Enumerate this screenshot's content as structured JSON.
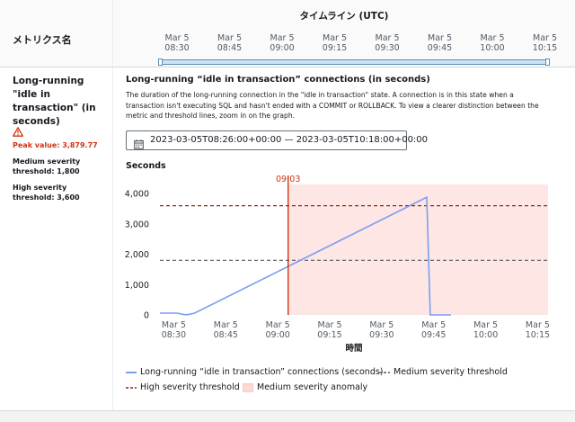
{
  "header": {
    "metrics_label": "メトリクス名",
    "timeline_title": "タイムライン (UTC)",
    "ticks": [
      {
        "date": "Mar 5",
        "time": "08:30"
      },
      {
        "date": "Mar 5",
        "time": "08:45"
      },
      {
        "date": "Mar 5",
        "time": "09:00"
      },
      {
        "date": "Mar 5",
        "time": "09:15"
      },
      {
        "date": "Mar 5",
        "time": "09:30"
      },
      {
        "date": "Mar 5",
        "time": "09:45"
      },
      {
        "date": "Mar 5",
        "time": "10:00"
      },
      {
        "date": "Mar 5",
        "time": "10:15"
      }
    ]
  },
  "metric": {
    "name": "Long-running \"idle in transaction\" (in seconds)",
    "peak_value": "Peak value: 3,879.77",
    "medium_threshold": "Medium severity threshold: 1,800",
    "high_threshold": "High severity threshold: 3,600"
  },
  "detail": {
    "title": "Long-running “idle in transaction” connections (in seconds)",
    "description": "The duration of the long-running connection in the \"idle in transaction\" state. A connection is in this state when a transaction isn't executing SQL and hasn't ended with a COMMIT or ROLLBACK. To view a clearer distinction between the metric and threshold lines, zoom in on the graph.",
    "date_range": "2023-03-05T08:26:00+00:00 — 2023-03-05T10:18:00+00:00",
    "y_title": "Seconds"
  },
  "colors": {
    "series": "#7b9ef0",
    "medium_threshold": "#545b64",
    "high_threshold": "#8b2c0e",
    "anomaly_fill": "#fde6e4",
    "marker": "#d13212"
  },
  "chart_data": {
    "type": "line",
    "ylabel": "Seconds",
    "xlabel": "時間",
    "ylim": [
      0,
      4300
    ],
    "y_ticks": [
      "0",
      "1,000",
      "2,000",
      "3,000",
      "4,000"
    ],
    "y_tick_values": [
      0,
      1000,
      2000,
      3000,
      4000
    ],
    "x_ticks": [
      {
        "date": "Mar 5",
        "time": "08:30"
      },
      {
        "date": "Mar 5",
        "time": "08:45"
      },
      {
        "date": "Mar 5",
        "time": "09:00"
      },
      {
        "date": "Mar 5",
        "time": "09:15"
      },
      {
        "date": "Mar 5",
        "time": "09:30"
      },
      {
        "date": "Mar 5",
        "time": "09:45"
      },
      {
        "date": "Mar 5",
        "time": "10:00"
      },
      {
        "date": "Mar 5",
        "time": "10:15"
      }
    ],
    "series": [
      {
        "name": "Long-running “idle in transaction” connections (seconds)",
        "x": [
          "08:26",
          "08:31",
          "08:33",
          "08:34",
          "08:36",
          "09:43",
          "09:44",
          "09:50"
        ],
        "values": [
          60,
          60,
          10,
          10,
          60,
          3880,
          0,
          0
        ]
      }
    ],
    "thresholds": [
      {
        "name": "Medium severity threshold",
        "value": 1800
      },
      {
        "name": "High severity threshold",
        "value": 3600
      }
    ],
    "anomaly": {
      "name": "Medium severity anomaly",
      "start": "09:03",
      "end": "10:18"
    },
    "marker": {
      "label": "09:03",
      "x": "09:03"
    }
  }
}
